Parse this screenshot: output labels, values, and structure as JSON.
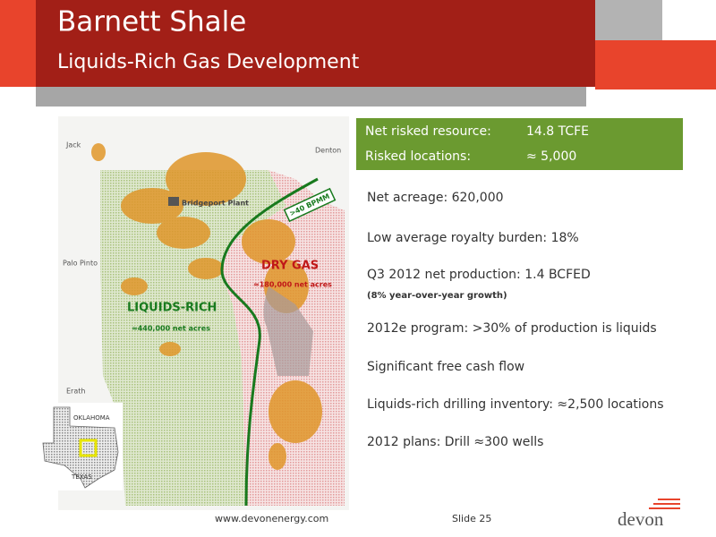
{
  "header": {
    "title": "Barnett Shale",
    "subtitle": "Liquids-Rich Gas Development"
  },
  "map": {
    "counties": [
      "Jack",
      "Denton",
      "Palo Pinto",
      "Erath"
    ],
    "plant": "Bridgeport Plant",
    "callout": ">40 BPMM",
    "dry_gas": {
      "label": "DRY GAS",
      "acres": "≈180,000 net acres"
    },
    "liquids_rich": {
      "label": "LIQUIDS-RICH",
      "acres": "≈440,000 net acres"
    },
    "inset": [
      "OKLAHOMA",
      "TEXAS"
    ]
  },
  "summary": {
    "rows": [
      [
        "Net risked resource:",
        "14.8 TCFE"
      ],
      [
        "Risked locations:",
        "≈ 5,000"
      ]
    ]
  },
  "bullets": [
    {
      "text": "Net acreage: 620,000"
    },
    {
      "text": "Low average royalty burden: 18%"
    },
    {
      "text": "Q3 2012 net production: 1.4 BCFED",
      "note": "(8% year-over-year growth)"
    },
    {
      "text": "2012e program: >30% of production is liquids"
    },
    {
      "text": "Significant free cash flow"
    },
    {
      "text": "Liquids-rich drilling inventory: ≈2,500 locations"
    },
    {
      "text": "2012 plans: Drill ≈300 wells"
    }
  ],
  "footer": {
    "url": "www.devonenergy.com",
    "slide": "Slide 25",
    "logo": "devon"
  }
}
